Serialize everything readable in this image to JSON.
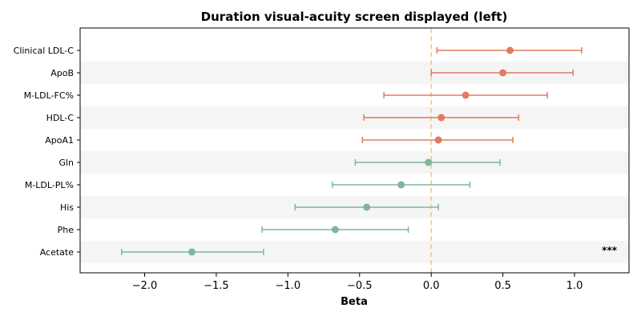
{
  "chart_data": {
    "type": "scatter",
    "subtype": "forest-plot",
    "title": "Duration visual-acuity screen displayed (left)",
    "xlabel": "Beta",
    "ylabel": "",
    "xlim": [
      -2.45,
      1.38
    ],
    "xticks": [
      -2.0,
      -1.5,
      -1.0,
      -0.5,
      0.0,
      0.5,
      1.0
    ],
    "xtick_labels": [
      "−2.0",
      "−1.5",
      "−1.0",
      "−0.5",
      "0.0",
      "0.5",
      "1.0"
    ],
    "reference_line": {
      "x": 0,
      "style": "dashed",
      "color": "#F2C58A"
    },
    "alternating_row_shading": true,
    "grid": false,
    "colors": {
      "positive": "#E07B5F",
      "negative": "#7FB59E",
      "row_shade": "#F5F5F5"
    },
    "rows": [
      {
        "label": "Clinical LDL-C",
        "beta": 0.55,
        "lower": 0.04,
        "upper": 1.05,
        "annotation": ""
      },
      {
        "label": "ApoB",
        "beta": 0.5,
        "lower": 0.0,
        "upper": 0.99,
        "annotation": ""
      },
      {
        "label": "M-LDL-FC%",
        "beta": 0.24,
        "lower": -0.33,
        "upper": 0.81,
        "annotation": ""
      },
      {
        "label": "HDL-C",
        "beta": 0.07,
        "lower": -0.47,
        "upper": 0.61,
        "annotation": ""
      },
      {
        "label": "ApoA1",
        "beta": 0.05,
        "lower": -0.48,
        "upper": 0.57,
        "annotation": ""
      },
      {
        "label": "Gln",
        "beta": -0.02,
        "lower": -0.53,
        "upper": 0.48,
        "annotation": ""
      },
      {
        "label": "M-LDL-PL%",
        "beta": -0.21,
        "lower": -0.69,
        "upper": 0.27,
        "annotation": ""
      },
      {
        "label": "His",
        "beta": -0.45,
        "lower": -0.95,
        "upper": 0.05,
        "annotation": ""
      },
      {
        "label": "Phe",
        "beta": -0.67,
        "lower": -1.18,
        "upper": -0.16,
        "annotation": ""
      },
      {
        "label": "Acetate",
        "beta": -1.67,
        "lower": -2.16,
        "upper": -1.17,
        "annotation": "***"
      }
    ]
  }
}
